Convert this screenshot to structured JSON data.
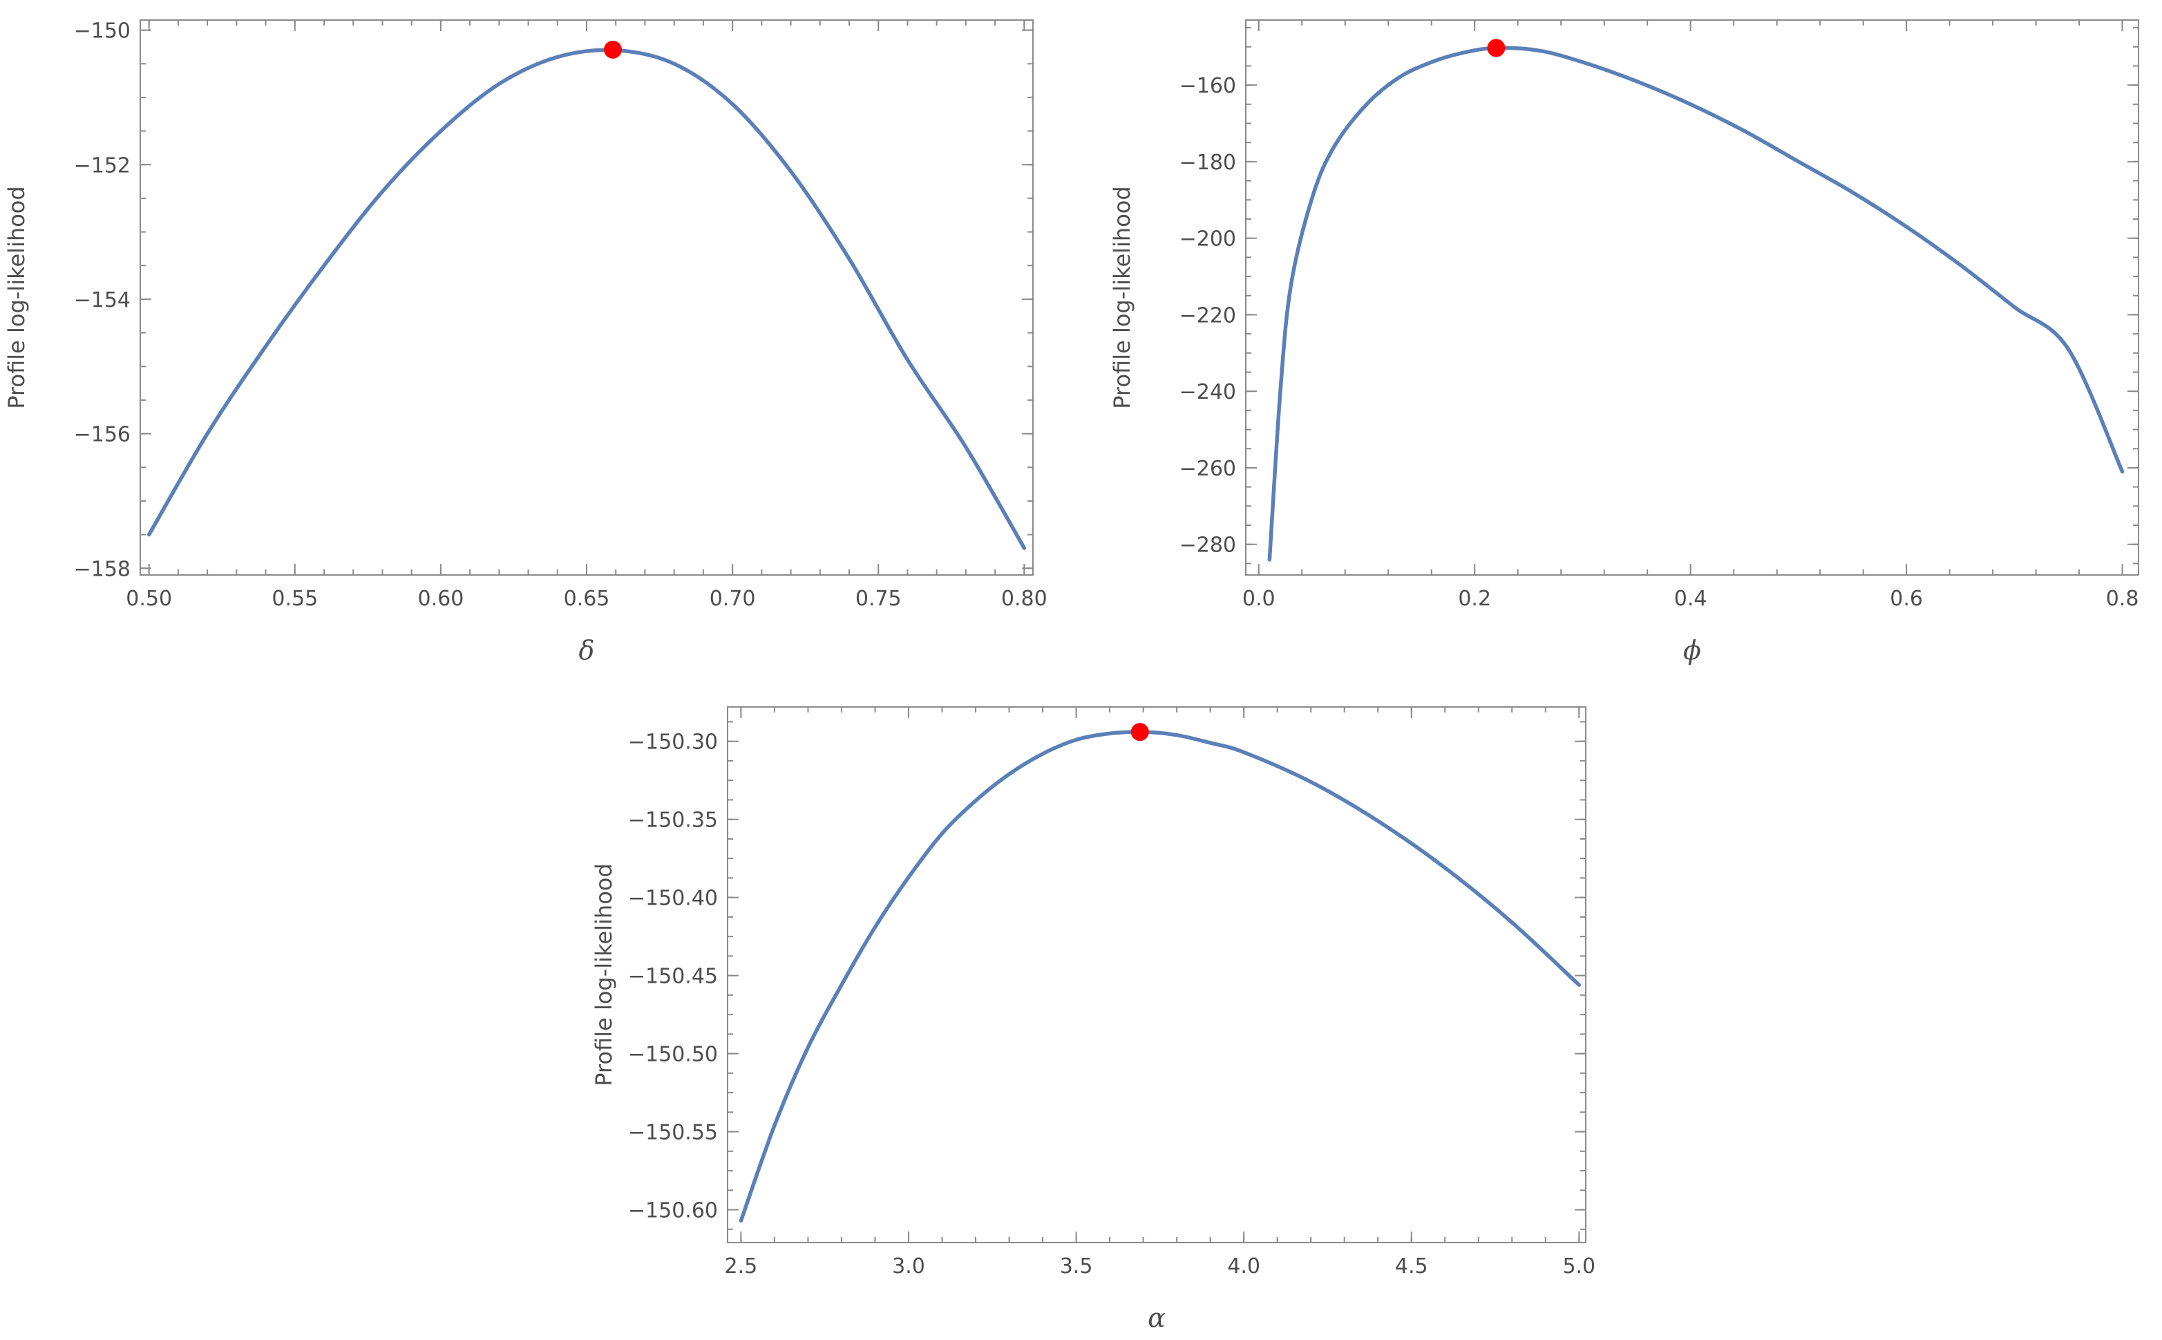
{
  "chart_data": [
    {
      "type": "line",
      "id": "delta",
      "xlabel": "δ",
      "ylabel": "Profile log-likelihood",
      "xlim": [
        0.497,
        0.803
      ],
      "ylim": [
        -158.1,
        -149.85
      ],
      "xticks": [
        {
          "v": 0.5,
          "label": "0.50"
        },
        {
          "v": 0.55,
          "label": "0.55"
        },
        {
          "v": 0.6,
          "label": "0.60"
        },
        {
          "v": 0.65,
          "label": "0.65"
        },
        {
          "v": 0.7,
          "label": "0.70"
        },
        {
          "v": 0.75,
          "label": "0.75"
        },
        {
          "v": 0.8,
          "label": "0.80"
        }
      ],
      "yticks": [
        {
          "v": -150,
          "label": "−150"
        },
        {
          "v": -152,
          "label": "−152"
        },
        {
          "v": -154,
          "label": "−154"
        },
        {
          "v": -156,
          "label": "−156"
        },
        {
          "v": -158,
          "label": "−158"
        }
      ],
      "series": [
        {
          "x": [
            0.5,
            0.52,
            0.54,
            0.56,
            0.58,
            0.6,
            0.62,
            0.64,
            0.66,
            0.68,
            0.7,
            0.72,
            0.74,
            0.76,
            0.78,
            0.8
          ],
          "y": [
            -157.5,
            -156.0,
            -154.7,
            -153.5,
            -152.4,
            -151.5,
            -150.8,
            -150.4,
            -150.3,
            -150.5,
            -151.1,
            -152.1,
            -153.4,
            -154.9,
            -156.2,
            -157.7
          ]
        }
      ],
      "max_point": {
        "x": 0.659,
        "y": -150.29
      }
    },
    {
      "type": "line",
      "id": "phi",
      "xlabel": "ϕ",
      "ylabel": "Profile log-likelihood",
      "xlim": [
        -0.012,
        0.815
      ],
      "ylim": [
        -288,
        -143
      ],
      "xticks": [
        {
          "v": 0.0,
          "label": "0.0"
        },
        {
          "v": 0.2,
          "label": "0.2"
        },
        {
          "v": 0.4,
          "label": "0.4"
        },
        {
          "v": 0.6,
          "label": "0.6"
        },
        {
          "v": 0.8,
          "label": "0.8"
        }
      ],
      "yticks": [
        {
          "v": -160,
          "label": "−160"
        },
        {
          "v": -180,
          "label": "−180"
        },
        {
          "v": -200,
          "label": "−200"
        },
        {
          "v": -220,
          "label": "−220"
        },
        {
          "v": -240,
          "label": "−240"
        },
        {
          "v": -260,
          "label": "−260"
        },
        {
          "v": -280,
          "label": "−280"
        }
      ],
      "series": [
        {
          "x": [
            0.01,
            0.02,
            0.03,
            0.05,
            0.07,
            0.1,
            0.13,
            0.16,
            0.19,
            0.22,
            0.26,
            0.3,
            0.35,
            0.4,
            0.45,
            0.5,
            0.55,
            0.6,
            0.65,
            0.7,
            0.75,
            0.8
          ],
          "y": [
            -284,
            -240,
            -212,
            -189,
            -176,
            -165,
            -158,
            -154,
            -151.5,
            -150.3,
            -151,
            -154,
            -159,
            -165,
            -172,
            -180,
            -188,
            -197,
            -207,
            -218,
            -229,
            -261
          ]
        }
      ],
      "max_point": {
        "x": 0.22,
        "y": -150.3
      }
    },
    {
      "type": "line",
      "id": "alpha",
      "xlabel": "α",
      "ylabel": "Profile log-likelihood",
      "xlim": [
        2.46,
        5.02
      ],
      "ylim": [
        -150.621,
        -150.278
      ],
      "xticks": [
        {
          "v": 2.5,
          "label": "2.5"
        },
        {
          "v": 3.0,
          "label": "3.0"
        },
        {
          "v": 3.5,
          "label": "3.5"
        },
        {
          "v": 4.0,
          "label": "4.0"
        },
        {
          "v": 4.5,
          "label": "4.5"
        },
        {
          "v": 5.0,
          "label": "5.0"
        }
      ],
      "yticks": [
        {
          "v": -150.3,
          "label": "−150.30"
        },
        {
          "v": -150.35,
          "label": "−150.35"
        },
        {
          "v": -150.4,
          "label": "−150.40"
        },
        {
          "v": -150.45,
          "label": "−150.45"
        },
        {
          "v": -150.5,
          "label": "−150.50"
        },
        {
          "v": -150.55,
          "label": "−150.55"
        },
        {
          "v": -150.6,
          "label": "−150.60"
        }
      ],
      "series": [
        {
          "x": [
            2.5,
            2.6,
            2.7,
            2.8,
            2.9,
            3.0,
            3.1,
            3.2,
            3.3,
            3.4,
            3.5,
            3.6,
            3.7,
            3.8,
            3.9,
            4.0,
            4.2,
            4.4,
            4.6,
            4.8,
            5.0
          ],
          "y": [
            -150.607,
            -150.546,
            -150.496,
            -150.456,
            -150.419,
            -150.387,
            -150.359,
            -150.338,
            -150.321,
            -150.308,
            -150.299,
            -150.295,
            -150.294,
            -150.296,
            -150.301,
            -150.307,
            -150.326,
            -150.351,
            -150.381,
            -150.416,
            -150.456
          ]
        }
      ],
      "max_point": {
        "x": 3.69,
        "y": -150.294
      }
    }
  ]
}
